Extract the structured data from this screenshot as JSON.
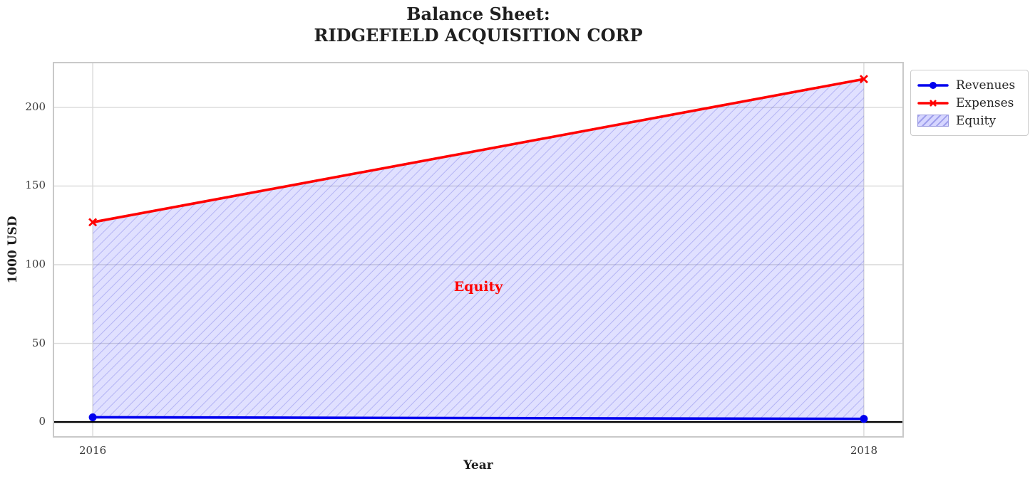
{
  "title": {
    "line1": "Balance Sheet:",
    "line2": "RIDGEFIELD ACQUISITION CORP"
  },
  "chart_data": {
    "type": "area",
    "title": "Balance Sheet:\nRIDGEFIELD ACQUISITION CORP",
    "x": [
      2016,
      2018
    ],
    "series": [
      {
        "name": "Revenues",
        "values": [
          3,
          2
        ],
        "color": "#0000ee",
        "marker": "circle"
      },
      {
        "name": "Expenses",
        "values": [
          127,
          218
        ],
        "color": "#ff0000",
        "marker": "x"
      }
    ],
    "area": {
      "name": "Equity",
      "between": [
        "Revenues",
        "Expenses"
      ],
      "fill_tint": "rgba(0,0,255,0.12)",
      "hatch": "/",
      "hatch_line_color": "rgba(80,80,220,0.30)"
    },
    "annotation": {
      "text": "Equity",
      "x": 2017,
      "y": 86,
      "color": "#ff0000"
    },
    "xlabel": "Year",
    "ylabel": "1000 USD",
    "x_ticks": [
      2016,
      2018
    ],
    "y_ticks": [
      0,
      50,
      100,
      150,
      200
    ],
    "xlim": [
      2015.9,
      2018.1
    ],
    "ylim": [
      -9,
      228
    ],
    "grid": true,
    "zero_line": 0,
    "legend_position": "upper right, outside axes"
  },
  "legend": {
    "border_color": "#cccccc"
  }
}
